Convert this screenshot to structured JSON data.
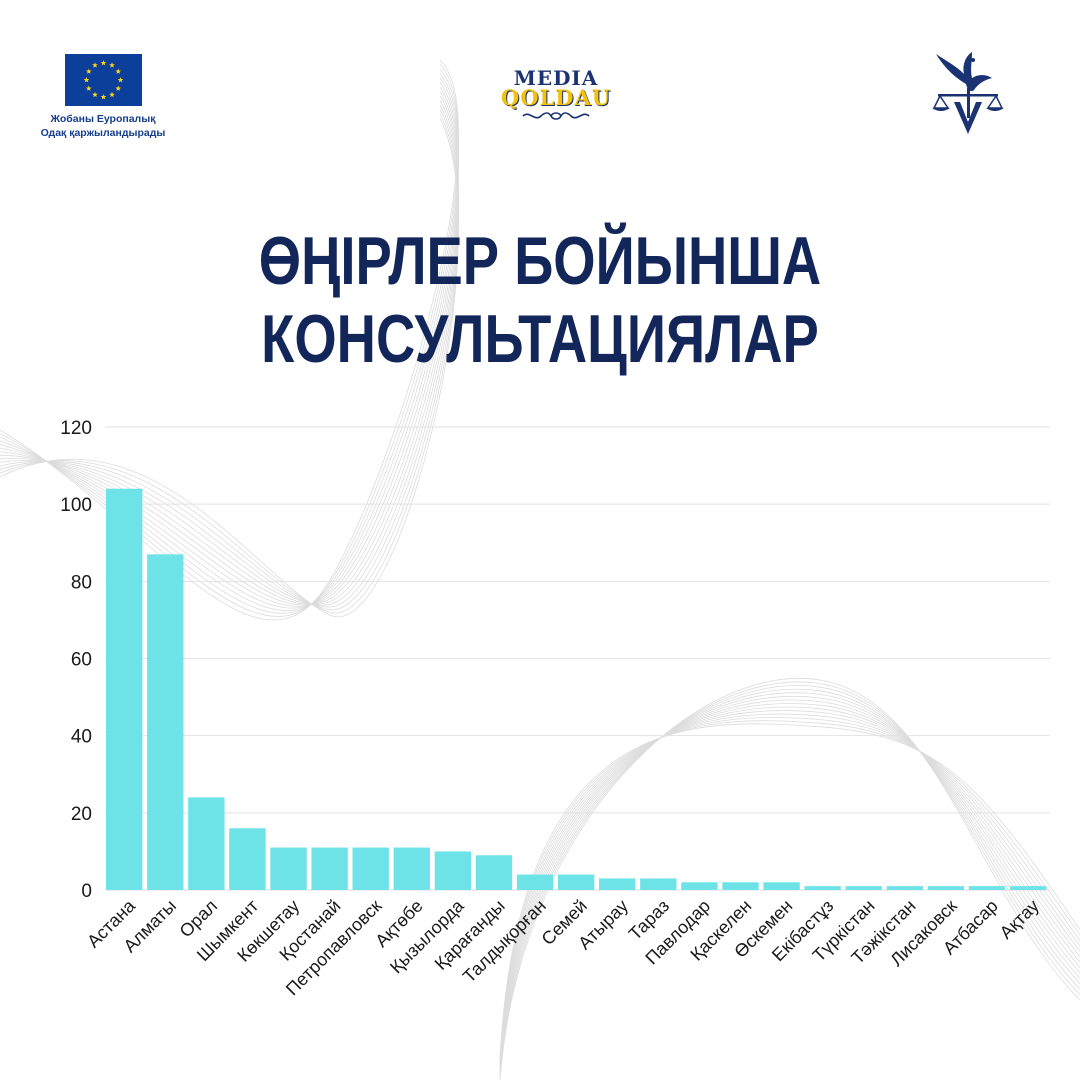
{
  "header": {
    "eu_caption_line1": "Жобаны Еуропалық",
    "eu_caption_line2": "Одақ қаржыландырады",
    "media_word": "MEDIA",
    "qoldau_word": "QOLDAU"
  },
  "title": {
    "line1": "ӨҢІРЛЕР БОЙЫНША",
    "line2": "КОНСУЛЬТАЦИЯЛАР"
  },
  "colors": {
    "bar": "#6de3e8",
    "title": "#13265a",
    "eu_blue": "#0c3f9a",
    "eu_star": "#ffd617",
    "logo_blue": "#1b3373",
    "logo_yellow": "#f2c20c",
    "grid": "#e2e2e2",
    "axis_text": "#1a1a1a"
  },
  "chart_data": {
    "type": "bar",
    "title": "ӨҢІРЛЕР БОЙЫНША КОНСУЛЬТАЦИЯЛАР",
    "xlabel": "",
    "ylabel": "",
    "ylim": [
      0,
      120
    ],
    "yticks": [
      0,
      20,
      40,
      60,
      80,
      100,
      120
    ],
    "grid": true,
    "legend": "none",
    "categories": [
      "Астана",
      "Алматы",
      "Орал",
      "Шымкент",
      "Көкшетау",
      "Қостанай",
      "Петропавловск",
      "Ақтөбе",
      "Қызылорда",
      "Қарағанды",
      "Талдықорған",
      "Семей",
      "Атырау",
      "Тараз",
      "Павлодар",
      "Қаскелен",
      "Өскемен",
      "Екібастұз",
      "Түркістан",
      "Тәжікстан",
      "Лисаковск",
      "Атбасар",
      "Ақтау"
    ],
    "values": [
      104,
      87,
      24,
      16,
      11,
      11,
      11,
      11,
      10,
      9,
      4,
      4,
      3,
      3,
      2,
      2,
      2,
      1,
      1,
      1,
      1,
      1,
      1
    ]
  }
}
